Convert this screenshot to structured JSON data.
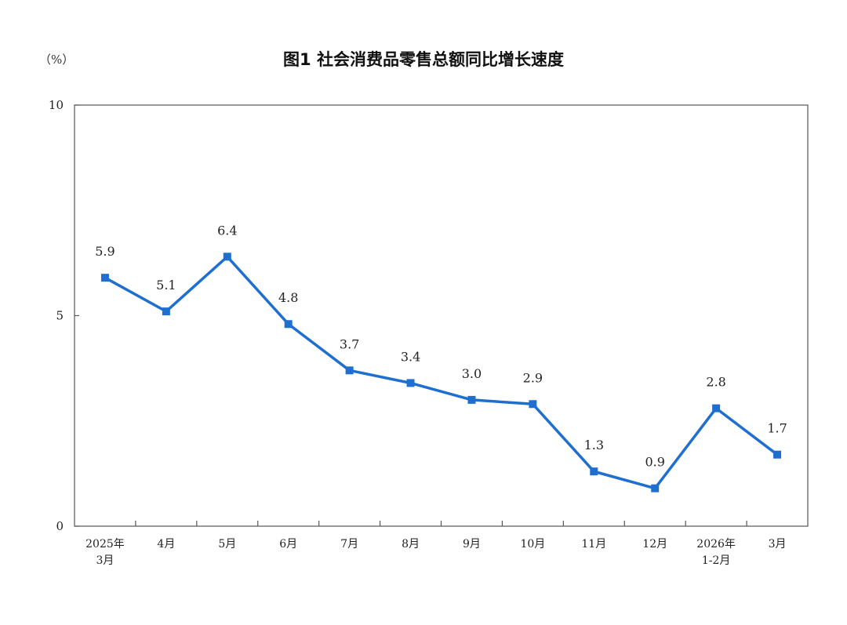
{
  "chart_data": {
    "type": "line",
    "title": "图1  社会消费品零售总额同比增长速度",
    "unit": "（%）",
    "categories": [
      [
        "2025年",
        "3月"
      ],
      [
        "4月"
      ],
      [
        "5月"
      ],
      [
        "6月"
      ],
      [
        "7月"
      ],
      [
        "8月"
      ],
      [
        "9月"
      ],
      [
        "10月"
      ],
      [
        "11月"
      ],
      [
        "12月"
      ],
      [
        "2026年",
        "1-2月"
      ],
      [
        "3月"
      ]
    ],
    "values": [
      5.9,
      5.1,
      6.4,
      4.8,
      3.7,
      3.4,
      3.0,
      2.9,
      1.3,
      0.9,
      2.8,
      1.7
    ],
    "data_labels": [
      "5.9",
      "5.1",
      "6.4",
      "4.8",
      "3.7",
      "3.4",
      "3.0",
      "2.9",
      "1.3",
      "0.9",
      "2.8",
      "1.7"
    ],
    "ylim": [
      0,
      10
    ],
    "yticks": [
      "0",
      "5",
      "10"
    ],
    "grid": false,
    "line_color": "#1f6fd1",
    "marker": "square"
  }
}
